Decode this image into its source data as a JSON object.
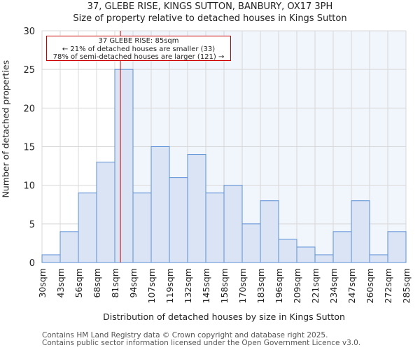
{
  "chart_data": {
    "type": "bar",
    "title": "37, GLEBE RISE, KINGS SUTTON, BANBURY, OX17 3PH",
    "subtitle": "Size of property relative to detached houses in Kings Sutton",
    "xlabel": "Distribution of detached houses by size in Kings Sutton",
    "ylabel": "Number of detached properties",
    "bin_edges": [
      30,
      43,
      56,
      68,
      81,
      94,
      107,
      119,
      132,
      145,
      158,
      170,
      183,
      196,
      209,
      221,
      234,
      247,
      260,
      272,
      285
    ],
    "tick_labels": [
      "30sqm",
      "43sqm",
      "56sqm",
      "68sqm",
      "81sqm",
      "94sqm",
      "107sqm",
      "119sqm",
      "132sqm",
      "145sqm",
      "158sqm",
      "170sqm",
      "183sqm",
      "196sqm",
      "209sqm",
      "221sqm",
      "234sqm",
      "247sqm",
      "260sqm",
      "272sqm",
      "285sqm"
    ],
    "values": [
      1,
      4,
      9,
      13,
      25,
      9,
      15,
      11,
      14,
      9,
      10,
      5,
      8,
      3,
      2,
      1,
      4,
      8,
      1,
      4
    ],
    "ylim": [
      0,
      30
    ],
    "yticks": [
      0,
      5,
      10,
      15,
      20,
      25,
      30
    ],
    "grid": true,
    "marker_value": 85,
    "marker_bin_fraction": 0.31,
    "annotation": {
      "line1": "37 GLEBE RISE: 85sqm",
      "line2": "← 21% of detached houses are smaller (33)",
      "line3": "78% of semi-detached houses are larger (121) →"
    },
    "colors": {
      "bar_fill": "#dae4f4",
      "bar_stroke": "#5b8fd6",
      "marker": "#cc0000",
      "right_bg": "#f1f5fc",
      "grid": "#d8d8d8"
    }
  },
  "footer": {
    "line1": "Contains HM Land Registry data © Crown copyright and database right 2025.",
    "line2": "Contains public sector information licensed under the Open Government Licence v3.0."
  }
}
